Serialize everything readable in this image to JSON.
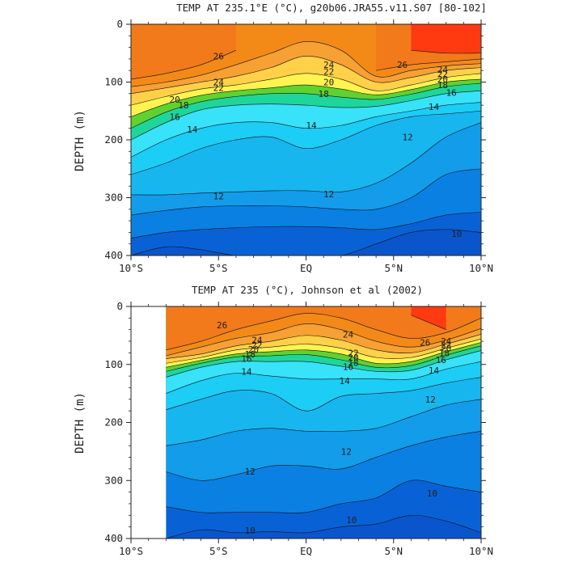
{
  "chart_data": [
    {
      "type": "heatmap",
      "subtype": "filled-contour",
      "title": "TEMP AT 235.1°E (°C), g20b06.JRA55.v11.S07 [80-102]",
      "ylabel": "DEPTH (m)",
      "xlabel": "",
      "x_ticks": [
        "10°S",
        "5°S",
        "EQ",
        "5°N",
        "10°N"
      ],
      "y_ticks": [
        "0",
        "100",
        "200",
        "300",
        "400"
      ],
      "xlim": [
        -10,
        10
      ],
      "ylim": [
        400,
        0
      ],
      "y_inverted": true,
      "x_data_start": -10,
      "contour_interval": 1,
      "contour_levels_labeled": [
        10,
        12,
        14,
        16,
        18,
        20,
        22,
        24,
        26
      ],
      "contour_labels": [
        {
          "text": "26",
          "x": -5.0,
          "y": 55
        },
        {
          "text": "24",
          "x": 1.3,
          "y": 70
        },
        {
          "text": "22",
          "x": 1.3,
          "y": 82
        },
        {
          "text": "20",
          "x": 1.3,
          "y": 100
        },
        {
          "text": "24",
          "x": -5.0,
          "y": 100
        },
        {
          "text": "22",
          "x": -5.0,
          "y": 110
        },
        {
          "text": "20",
          "x": -7.5,
          "y": 130
        },
        {
          "text": "18",
          "x": 1.0,
          "y": 120
        },
        {
          "text": "18",
          "x": -7.0,
          "y": 140
        },
        {
          "text": "16",
          "x": -7.5,
          "y": 160
        },
        {
          "text": "14",
          "x": -6.5,
          "y": 182
        },
        {
          "text": "14",
          "x": 0.3,
          "y": 175
        },
        {
          "text": "16",
          "x": 8.3,
          "y": 118
        },
        {
          "text": "14",
          "x": 7.3,
          "y": 143
        },
        {
          "text": "26",
          "x": 5.5,
          "y": 70
        },
        {
          "text": "24",
          "x": 7.8,
          "y": 78
        },
        {
          "text": "22",
          "x": 7.8,
          "y": 86
        },
        {
          "text": "20",
          "x": 7.8,
          "y": 95
        },
        {
          "text": "18",
          "x": 7.8,
          "y": 105
        },
        {
          "text": "12",
          "x": 5.8,
          "y": 195
        },
        {
          "text": "12",
          "x": -5.0,
          "y": 297
        },
        {
          "text": "12",
          "x": 1.3,
          "y": 294
        },
        {
          "text": "10",
          "x": 8.6,
          "y": 362
        }
      ],
      "columns_x": [
        -10,
        -8,
        -6,
        -4,
        -2,
        0,
        2,
        4,
        6,
        8,
        10
      ],
      "isotherm_depths_m": {
        "27": [
          null,
          null,
          null,
          null,
          null,
          null,
          null,
          null,
          45,
          50,
          50
        ],
        "26": [
          95,
          85,
          70,
          45,
          null,
          null,
          null,
          80,
          70,
          65,
          60
        ],
        "25": [
          108,
          100,
          88,
          70,
          50,
          30,
          45,
          90,
          80,
          72,
          68
        ],
        "24": [
          120,
          110,
          100,
          90,
          75,
          55,
          70,
          100,
          92,
          80,
          75
        ],
        "22": [
          140,
          125,
          112,
          105,
          95,
          85,
          95,
          115,
          105,
          92,
          85
        ],
        "20": [
          160,
          138,
          123,
          115,
          110,
          105,
          112,
          122,
          113,
          100,
          95
        ],
        "18": [
          180,
          152,
          134,
          125,
          120,
          120,
          126,
          130,
          121,
          108,
          102
        ],
        "16": [
          200,
          170,
          148,
          140,
          138,
          140,
          144,
          142,
          132,
          120,
          115
        ],
        "14": [
          230,
          200,
          180,
          170,
          170,
          180,
          175,
          160,
          150,
          140,
          135
        ],
        "13": [
          260,
          240,
          215,
          200,
          195,
          215,
          200,
          175,
          160,
          155,
          150
        ],
        "12": [
          295,
          295,
          292,
          290,
          288,
          288,
          290,
          275,
          240,
          195,
          170
        ],
        "11": [
          330,
          322,
          316,
          314,
          314,
          316,
          320,
          320,
          300,
          260,
          250
        ],
        "10": [
          370,
          360,
          355,
          352,
          350,
          350,
          352,
          355,
          345,
          330,
          325
        ],
        "9": [
          400,
          385,
          390,
          400,
          400,
          400,
          400,
          380,
          360,
          355,
          360
        ]
      }
    },
    {
      "type": "heatmap",
      "subtype": "filled-contour",
      "title": "TEMP AT 235 (°C), Johnson et al (2002)",
      "ylabel": "DEPTH (m)",
      "xlabel": "",
      "x_ticks": [
        "10°S",
        "5°S",
        "EQ",
        "5°N",
        "10°N"
      ],
      "y_ticks": [
        "0",
        "100",
        "200",
        "300",
        "400"
      ],
      "xlim": [
        -10,
        10
      ],
      "ylim": [
        400,
        0
      ],
      "y_inverted": true,
      "x_data_start": -8,
      "contour_interval": 1,
      "contour_levels_labeled": [
        10,
        12,
        14,
        16,
        18,
        20,
        22,
        24,
        26
      ],
      "contour_labels": [
        {
          "text": "26",
          "x": -4.8,
          "y": 32
        },
        {
          "text": "24",
          "x": -2.8,
          "y": 58
        },
        {
          "text": "22",
          "x": -2.8,
          "y": 66
        },
        {
          "text": "20",
          "x": -3.0,
          "y": 74
        },
        {
          "text": "18",
          "x": -3.2,
          "y": 82
        },
        {
          "text": "16",
          "x": -3.4,
          "y": 90
        },
        {
          "text": "14",
          "x": -3.4,
          "y": 112
        },
        {
          "text": "24",
          "x": 2.4,
          "y": 48
        },
        {
          "text": "22",
          "x": 2.7,
          "y": 80
        },
        {
          "text": "20",
          "x": 2.7,
          "y": 88
        },
        {
          "text": "18",
          "x": 2.7,
          "y": 97
        },
        {
          "text": "16",
          "x": 2.4,
          "y": 104
        },
        {
          "text": "14",
          "x": 2.2,
          "y": 128
        },
        {
          "text": "26",
          "x": 6.8,
          "y": 62
        },
        {
          "text": "24",
          "x": 8.0,
          "y": 60
        },
        {
          "text": "22",
          "x": 8.0,
          "y": 66
        },
        {
          "text": "20",
          "x": 8.0,
          "y": 72
        },
        {
          "text": "18",
          "x": 7.9,
          "y": 80
        },
        {
          "text": "16",
          "x": 7.7,
          "y": 92
        },
        {
          "text": "14",
          "x": 7.3,
          "y": 110
        },
        {
          "text": "12",
          "x": 7.1,
          "y": 160
        },
        {
          "text": "12",
          "x": 2.3,
          "y": 250
        },
        {
          "text": "12",
          "x": -3.2,
          "y": 284
        },
        {
          "text": "10",
          "x": 7.2,
          "y": 322
        },
        {
          "text": "10",
          "x": 2.6,
          "y": 368
        },
        {
          "text": "10",
          "x": -3.2,
          "y": 386
        }
      ],
      "columns_x": [
        -8,
        -6,
        -4,
        -2,
        0,
        2,
        4,
        6,
        8,
        10
      ],
      "isotherm_depths_m": {
        "27": [
          null,
          null,
          null,
          null,
          null,
          null,
          null,
          15,
          40,
          null
        ],
        "26": [
          75,
          60,
          40,
          25,
          12,
          20,
          40,
          55,
          45,
          20
        ],
        "25": [
          85,
          70,
          55,
          45,
          30,
          40,
          60,
          70,
          58,
          38
        ],
        "24": [
          90,
          82,
          68,
          60,
          50,
          58,
          75,
          80,
          65,
          48
        ],
        "22": [
          98,
          88,
          75,
          70,
          65,
          72,
          88,
          88,
          72,
          56
        ],
        "20": [
          105,
          93,
          82,
          78,
          75,
          82,
          98,
          95,
          78,
          62
        ],
        "18": [
          112,
          98,
          87,
          85,
          83,
          92,
          105,
          102,
          84,
          68
        ],
        "16": [
          122,
          105,
          95,
          95,
          95,
          103,
          112,
          110,
          92,
          76
        ],
        "14": [
          150,
          128,
          115,
          120,
          125,
          125,
          125,
          125,
          108,
          95
        ],
        "13": [
          178,
          160,
          145,
          150,
          180,
          155,
          150,
          145,
          132,
          122
        ],
        "12": [
          240,
          230,
          215,
          210,
          215,
          215,
          210,
          190,
          170,
          160
        ],
        "11": [
          285,
          300,
          290,
          275,
          275,
          280,
          260,
          240,
          225,
          215
        ],
        "10": [
          345,
          355,
          355,
          355,
          355,
          340,
          330,
          300,
          310,
          320
        ],
        "9": [
          400,
          385,
          390,
          388,
          390,
          380,
          375,
          360,
          370,
          390
        ]
      }
    }
  ],
  "palette": {
    "27": "#ff3a10",
    "26": "#f27a1a",
    "25": "#f38a18",
    "24": "#f7a033",
    "23": "#fdb93a",
    "22": "#ffd048",
    "21": "#ffe64f",
    "20": "#fff350",
    "19": "#c6f03a",
    "18": "#5fd230",
    "17": "#1fc44a",
    "16": "#1ed69a",
    "15": "#2ee6d8",
    "14": "#38e2f8",
    "13": "#1ccdf6",
    "12": "#18b6ef",
    "11": "#129cea",
    "10": "#0a80e2",
    "9": "#0862d6"
  }
}
